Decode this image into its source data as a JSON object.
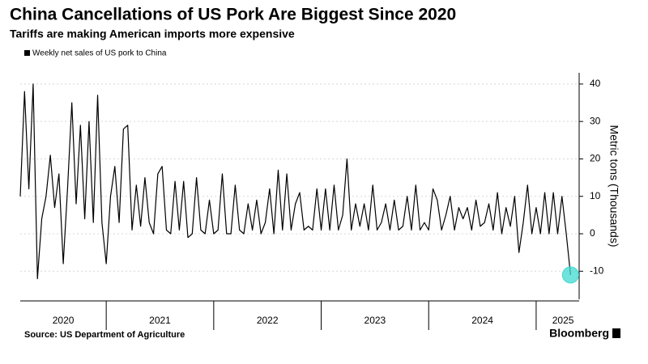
{
  "chart_data": {
    "type": "line",
    "title": "China Cancellations of US Pork Are Biggest Since 2020",
    "subtitle": "Tariffs are making American imports more expensive",
    "y_axis_label": "Metric tons (Thousands)",
    "source": "Source: US Department of Agriculture",
    "brand": "Bloomberg",
    "x": [
      2020.2,
      2020.24,
      2020.28,
      2020.32,
      2020.36,
      2020.4,
      2020.44,
      2020.48,
      2020.52,
      2020.56,
      2020.6,
      2020.64,
      2020.68,
      2020.72,
      2020.76,
      2020.8,
      2020.84,
      2020.88,
      2020.92,
      2020.96,
      2021,
      2021.04,
      2021.08,
      2021.12,
      2021.16,
      2021.2,
      2021.24,
      2021.28,
      2021.32,
      2021.36,
      2021.4,
      2021.44,
      2021.48,
      2021.52,
      2021.56,
      2021.6,
      2021.64,
      2021.68,
      2021.72,
      2021.76,
      2021.8,
      2021.84,
      2021.88,
      2021.92,
      2021.96,
      2022,
      2022.04,
      2022.08,
      2022.12,
      2022.16,
      2022.2,
      2022.24,
      2022.28,
      2022.32,
      2022.36,
      2022.4,
      2022.44,
      2022.48,
      2022.52,
      2022.56,
      2022.6,
      2022.64,
      2022.68,
      2022.72,
      2022.76,
      2022.8,
      2022.84,
      2022.88,
      2022.92,
      2022.96,
      2023,
      2023.04,
      2023.08,
      2023.12,
      2023.16,
      2023.2,
      2023.24,
      2023.28,
      2023.32,
      2023.36,
      2023.4,
      2023.44,
      2023.48,
      2023.52,
      2023.56,
      2023.6,
      2023.64,
      2023.68,
      2023.72,
      2023.76,
      2023.8,
      2023.84,
      2023.88,
      2023.92,
      2023.96,
      2024,
      2024.04,
      2024.08,
      2024.12,
      2024.16,
      2024.2,
      2024.24,
      2024.28,
      2024.32,
      2024.36,
      2024.4,
      2024.44,
      2024.48,
      2024.52,
      2024.56,
      2024.6,
      2024.64,
      2024.68,
      2024.72,
      2024.76,
      2024.8,
      2024.84,
      2024.88,
      2024.92,
      2024.96,
      2025,
      2025.04,
      2025.08,
      2025.12,
      2025.16,
      2025.2,
      2025.24,
      2025.28,
      2025.32
    ],
    "series": [
      {
        "name": "Weekly net sales of US pork to China",
        "color": "#000000",
        "values": [
          10,
          38,
          12,
          40,
          -12,
          4,
          10,
          21,
          7,
          16,
          -8,
          12,
          35,
          8,
          29,
          4,
          30,
          3,
          37,
          3,
          -8,
          10,
          18,
          3,
          28,
          29,
          1,
          13,
          2,
          15,
          3,
          0,
          16,
          18,
          1,
          0,
          14,
          1,
          14,
          -1,
          0,
          15,
          1,
          0,
          9,
          0,
          1,
          16,
          0,
          0,
          13,
          1,
          0,
          8,
          1,
          9,
          0,
          3,
          12,
          0,
          17,
          1,
          16,
          1,
          8,
          11,
          1,
          2,
          1,
          12,
          1,
          12,
          1,
          13,
          1,
          5,
          20,
          1,
          8,
          2,
          8,
          1,
          13,
          1,
          3,
          8,
          1,
          9,
          1,
          2,
          10,
          1,
          13,
          1,
          3,
          1,
          12,
          9,
          1,
          5,
          10,
          1,
          7,
          4,
          7,
          1,
          9,
          2,
          3,
          8,
          1,
          11,
          0,
          7,
          2,
          10,
          -5,
          3,
          13,
          0,
          7,
          0,
          11,
          0,
          11,
          0,
          10,
          0,
          -11
        ]
      }
    ],
    "xlim": [
      2020.2,
      2025.4
    ],
    "xticks": [
      2021,
      2022,
      2023,
      2024,
      2025
    ],
    "xtick_labels": [
      {
        "value": 2020.6,
        "label": "2020"
      },
      {
        "value": 2021.5,
        "label": "2021"
      },
      {
        "value": 2022.5,
        "label": "2022"
      },
      {
        "value": 2023.5,
        "label": "2023"
      },
      {
        "value": 2024.5,
        "label": "2024"
      },
      {
        "value": 2025.25,
        "label": "2025"
      }
    ],
    "ylim": [
      -17.5,
      43
    ],
    "yticks": [
      -10,
      0,
      10,
      20,
      30,
      40
    ],
    "grid": true,
    "highlight_color": "#3fd9d0"
  }
}
